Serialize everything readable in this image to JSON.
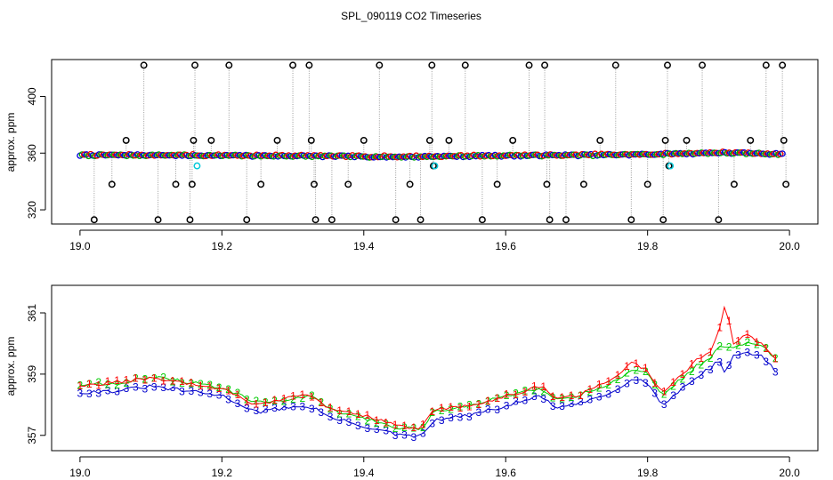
{
  "title": "SPL_090119  CO2 Timeseries",
  "chart_data": [
    {
      "type": "scatter",
      "xlabel": "",
      "ylabel": "approx. ppm",
      "xlim": [
        18.96,
        20.04
      ],
      "ylim": [
        310,
        426
      ],
      "xticks": [
        19.0,
        19.2,
        19.4,
        19.6,
        19.8,
        20.0
      ],
      "xtick_labels": [
        "19.0",
        "19.2",
        "19.4",
        "19.6",
        "19.8",
        "20.0"
      ],
      "yticks": [
        320,
        360,
        400
      ],
      "ytick_labels": [
        "320",
        "360",
        "400"
      ],
      "baseline": [
        [
          19.0,
          358.5
        ],
        [
          19.1,
          358.5
        ],
        [
          19.2,
          358.2
        ],
        [
          19.3,
          358.0
        ],
        [
          19.4,
          357.5
        ],
        [
          19.45,
          357.3
        ],
        [
          19.5,
          357.6
        ],
        [
          19.6,
          358.2
        ],
        [
          19.7,
          358.5
        ],
        [
          19.8,
          359.0
        ],
        [
          19.9,
          360.2
        ],
        [
          19.99,
          359.3
        ]
      ],
      "outliers_x": [
        19.02,
        19.045,
        19.065,
        19.09,
        19.11,
        19.135,
        19.155,
        19.158,
        19.16,
        19.162,
        19.185,
        19.21,
        19.235,
        19.255,
        19.278,
        19.3,
        19.323,
        19.326,
        19.33,
        19.332,
        19.355,
        19.378,
        19.4,
        19.422,
        19.445,
        19.465,
        19.48,
        19.493,
        19.496,
        19.498,
        19.52,
        19.543,
        19.567,
        19.588,
        19.61,
        19.633,
        19.655,
        19.658,
        19.662,
        19.685,
        19.71,
        19.733,
        19.755,
        19.777,
        19.8,
        19.822,
        19.825,
        19.828,
        19.83,
        19.855,
        19.877,
        19.9,
        19.922,
        19.945,
        19.967,
        19.99,
        19.992,
        19.995
      ],
      "outliers_y": [
        313,
        338,
        369,
        422,
        313,
        338,
        313,
        338,
        369,
        422,
        369,
        422,
        313,
        338,
        369,
        422,
        422,
        369,
        338,
        313,
        313,
        338,
        369,
        422,
        313,
        338,
        313,
        369,
        422,
        351,
        369,
        422,
        313,
        338,
        369,
        422,
        422,
        338,
        313,
        313,
        338,
        369,
        422,
        313,
        338,
        313,
        369,
        422,
        351,
        369,
        422,
        313,
        338,
        369,
        422,
        422,
        369,
        338
      ],
      "cyan_points": [
        [
          19.165,
          351
        ],
        [
          19.5,
          351
        ],
        [
          19.832,
          351
        ]
      ]
    },
    {
      "type": "line",
      "xlabel": "",
      "ylabel": "approx. ppm",
      "xlim": [
        18.96,
        20.04
      ],
      "ylim": [
        356.5,
        361.9
      ],
      "xticks": [
        19.0,
        19.2,
        19.4,
        19.6,
        19.8,
        20.0
      ],
      "xtick_labels": [
        "19.0",
        "19.2",
        "19.4",
        "19.6",
        "19.8",
        "20.0"
      ],
      "yticks": [
        357,
        359,
        361
      ],
      "ytick_labels": [
        "357",
        "359",
        "361"
      ],
      "series": [
        {
          "name": "1",
          "color": "#ff0000",
          "points": [
            [
              19.0,
              358.6
            ],
            [
              19.05,
              358.75
            ],
            [
              19.1,
              358.85
            ],
            [
              19.15,
              358.7
            ],
            [
              19.2,
              358.5
            ],
            [
              19.25,
              358.0
            ],
            [
              19.3,
              358.25
            ],
            [
              19.33,
              358.3
            ],
            [
              19.35,
              357.9
            ],
            [
              19.4,
              357.65
            ],
            [
              19.45,
              357.3
            ],
            [
              19.48,
              357.2
            ],
            [
              19.5,
              357.85
            ],
            [
              19.55,
              357.95
            ],
            [
              19.6,
              358.3
            ],
            [
              19.65,
              358.6
            ],
            [
              19.67,
              358.2
            ],
            [
              19.7,
              358.3
            ],
            [
              19.75,
              358.8
            ],
            [
              19.78,
              359.4
            ],
            [
              19.8,
              359.1
            ],
            [
              19.82,
              358.4
            ],
            [
              19.84,
              358.8
            ],
            [
              19.87,
              359.5
            ],
            [
              19.89,
              359.7
            ],
            [
              19.9,
              360.4
            ],
            [
              19.91,
              361.3
            ],
            [
              19.92,
              360.0
            ],
            [
              19.94,
              360.3
            ],
            [
              19.96,
              360.0
            ],
            [
              19.98,
              359.5
            ]
          ]
        },
        {
          "name": "2",
          "color": "#00cc00",
          "points": [
            [
              19.0,
              358.65
            ],
            [
              19.05,
              358.7
            ],
            [
              19.1,
              358.9
            ],
            [
              19.15,
              358.75
            ],
            [
              19.2,
              358.55
            ],
            [
              19.25,
              358.05
            ],
            [
              19.3,
              358.2
            ],
            [
              19.33,
              358.25
            ],
            [
              19.35,
              357.85
            ],
            [
              19.4,
              357.55
            ],
            [
              19.45,
              357.25
            ],
            [
              19.48,
              357.2
            ],
            [
              19.5,
              357.8
            ],
            [
              19.55,
              357.95
            ],
            [
              19.6,
              358.3
            ],
            [
              19.65,
              358.55
            ],
            [
              19.67,
              358.15
            ],
            [
              19.7,
              358.3
            ],
            [
              19.75,
              358.7
            ],
            [
              19.78,
              359.2
            ],
            [
              19.8,
              359.0
            ],
            [
              19.82,
              358.3
            ],
            [
              19.84,
              358.7
            ],
            [
              19.87,
              359.3
            ],
            [
              19.89,
              359.5
            ],
            [
              19.9,
              359.95
            ],
            [
              19.91,
              359.8
            ],
            [
              19.92,
              359.9
            ],
            [
              19.94,
              360.05
            ],
            [
              19.96,
              359.95
            ],
            [
              19.98,
              359.5
            ]
          ]
        },
        {
          "name": "3",
          "color": "#0000cc",
          "points": [
            [
              19.0,
              358.4
            ],
            [
              19.05,
              358.45
            ],
            [
              19.1,
              358.6
            ],
            [
              19.15,
              358.45
            ],
            [
              19.2,
              358.3
            ],
            [
              19.25,
              357.75
            ],
            [
              19.3,
              357.95
            ],
            [
              19.33,
              357.9
            ],
            [
              19.35,
              357.6
            ],
            [
              19.4,
              357.3
            ],
            [
              19.45,
              357.0
            ],
            [
              19.48,
              356.95
            ],
            [
              19.5,
              357.5
            ],
            [
              19.55,
              357.65
            ],
            [
              19.6,
              357.95
            ],
            [
              19.65,
              358.3
            ],
            [
              19.67,
              357.9
            ],
            [
              19.7,
              358.0
            ],
            [
              19.75,
              358.4
            ],
            [
              19.78,
              358.9
            ],
            [
              19.8,
              358.7
            ],
            [
              19.82,
              358.0
            ],
            [
              19.84,
              358.35
            ],
            [
              19.87,
              358.95
            ],
            [
              19.89,
              359.2
            ],
            [
              19.9,
              359.5
            ],
            [
              19.91,
              359.0
            ],
            [
              19.92,
              359.6
            ],
            [
              19.94,
              359.7
            ],
            [
              19.96,
              359.6
            ],
            [
              19.98,
              359.1
            ]
          ]
        }
      ]
    }
  ]
}
